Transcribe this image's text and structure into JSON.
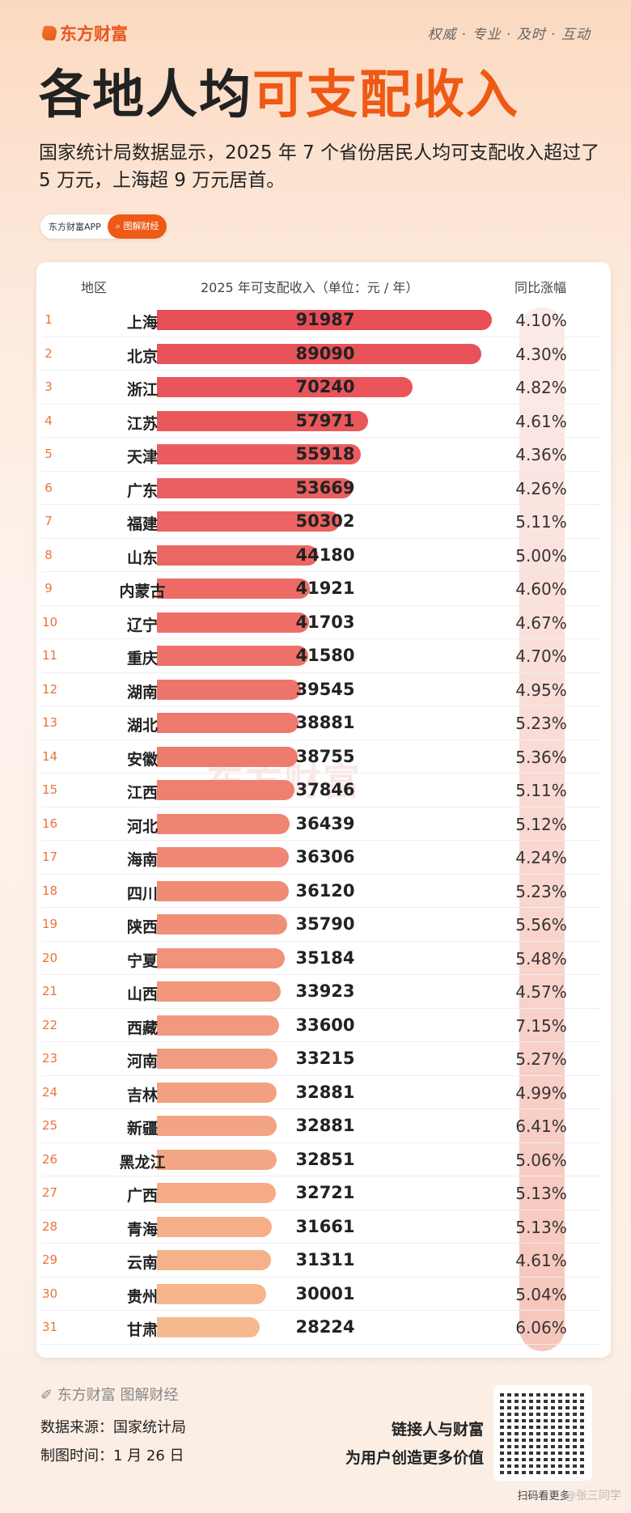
{
  "brand": {
    "name": "东方财富",
    "slogan": "权威 · 专业 · 及时 · 互动"
  },
  "title": {
    "part1": "各地人均",
    "part2": "可支配收入"
  },
  "subtitle": "国家统计局数据显示，2025 年 7 个省份居民人均可支配收入超过了 5 万元，上海超 9 万元居首。",
  "pill": {
    "app": "东方财富APP",
    "search": "图解财经"
  },
  "table": {
    "headers": {
      "region": "地区",
      "income": "2025 年可支配收入（单位：元 / 年）",
      "growth": "同比涨幅"
    },
    "rows": [
      {
        "rank": "1",
        "region": "上海",
        "income": 91987,
        "growth": "4.10%"
      },
      {
        "rank": "2",
        "region": "北京",
        "income": 89090,
        "growth": "4.30%"
      },
      {
        "rank": "3",
        "region": "浙江",
        "income": 70240,
        "growth": "4.82%"
      },
      {
        "rank": "4",
        "region": "江苏",
        "income": 57971,
        "growth": "4.61%"
      },
      {
        "rank": "5",
        "region": "天津",
        "income": 55918,
        "growth": "4.36%"
      },
      {
        "rank": "6",
        "region": "广东",
        "income": 53669,
        "growth": "4.26%"
      },
      {
        "rank": "7",
        "region": "福建",
        "income": 50302,
        "growth": "5.11%"
      },
      {
        "rank": "8",
        "region": "山东",
        "income": 44180,
        "growth": "5.00%"
      },
      {
        "rank": "9",
        "region": "内蒙古",
        "income": 41921,
        "growth": "4.60%"
      },
      {
        "rank": "10",
        "region": "辽宁",
        "income": 41703,
        "growth": "4.67%"
      },
      {
        "rank": "11",
        "region": "重庆",
        "income": 41580,
        "growth": "4.70%"
      },
      {
        "rank": "12",
        "region": "湖南",
        "income": 39545,
        "growth": "4.95%"
      },
      {
        "rank": "13",
        "region": "湖北",
        "income": 38881,
        "growth": "5.23%"
      },
      {
        "rank": "14",
        "region": "安徽",
        "income": 38755,
        "growth": "5.36%"
      },
      {
        "rank": "15",
        "region": "江西",
        "income": 37846,
        "growth": "5.11%"
      },
      {
        "rank": "16",
        "region": "河北",
        "income": 36439,
        "growth": "5.12%"
      },
      {
        "rank": "17",
        "region": "海南",
        "income": 36306,
        "growth": "4.24%"
      },
      {
        "rank": "18",
        "region": "四川",
        "income": 36120,
        "growth": "5.23%"
      },
      {
        "rank": "19",
        "region": "陕西",
        "income": 35790,
        "growth": "5.56%"
      },
      {
        "rank": "20",
        "region": "宁夏",
        "income": 35184,
        "growth": "5.48%"
      },
      {
        "rank": "21",
        "region": "山西",
        "income": 33923,
        "growth": "4.57%"
      },
      {
        "rank": "22",
        "region": "西藏",
        "income": 33600,
        "growth": "7.15%"
      },
      {
        "rank": "23",
        "region": "河南",
        "income": 33215,
        "growth": "5.27%"
      },
      {
        "rank": "24",
        "region": "吉林",
        "income": 32881,
        "growth": "4.99%"
      },
      {
        "rank": "25",
        "region": "新疆",
        "income": 32881,
        "growth": "6.41%"
      },
      {
        "rank": "26",
        "region": "黑龙江",
        "income": 32851,
        "growth": "5.06%"
      },
      {
        "rank": "27",
        "region": "广西",
        "income": 32721,
        "growth": "5.13%"
      },
      {
        "rank": "28",
        "region": "青海",
        "income": 31661,
        "growth": "5.13%"
      },
      {
        "rank": "29",
        "region": "云南",
        "income": 31311,
        "growth": "4.61%"
      },
      {
        "rank": "30",
        "region": "贵州",
        "income": 30001,
        "growth": "5.04%"
      },
      {
        "rank": "31",
        "region": "甘肃",
        "income": 28224,
        "growth": "6.06%"
      }
    ],
    "bar_colors": {
      "top": "#e84e57",
      "bottom": "#f6b98d"
    }
  },
  "watermark": "东方财富",
  "footer": {
    "brand": "东方财富 图解财经",
    "source": "数据来源：国家统计局",
    "date": "制图时间：1 月 26 日",
    "tagline1": "链接人与财富",
    "tagline2": "为用户创造更多价值",
    "scan": "扫码看更多",
    "weibo": "@张三同学"
  }
}
